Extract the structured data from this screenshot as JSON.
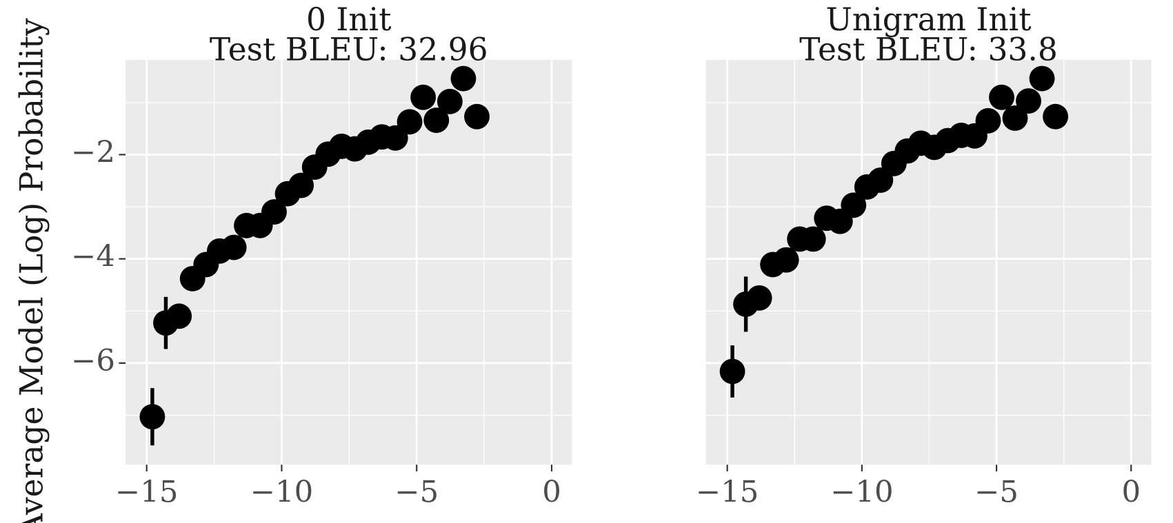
{
  "chart_data": [
    {
      "type": "scatter",
      "title": "0 Init",
      "subtitle": "Test BLEU: 32.96",
      "ylabel": "Average Model (Log) Probability",
      "color": "#000000",
      "grid": true,
      "x": [
        -14.79,
        -14.29,
        -13.8,
        -13.3,
        -12.8,
        -12.3,
        -11.77,
        -11.3,
        -10.8,
        -10.28,
        -9.78,
        -9.28,
        -8.78,
        -8.28,
        -7.78,
        -7.29,
        -6.79,
        -6.29,
        -5.79,
        -5.26,
        -4.76,
        -4.27,
        -3.77,
        -3.27,
        -2.77
      ],
      "values": [
        -7.03,
        -5.23,
        -5.1,
        -4.38,
        -4.11,
        -3.85,
        -3.78,
        -3.36,
        -3.36,
        -3.1,
        -2.75,
        -2.59,
        -2.24,
        -1.99,
        -1.84,
        -1.89,
        -1.76,
        -1.66,
        -1.68,
        -1.37,
        -0.9,
        -1.34,
        -0.98,
        -0.54,
        -1.27
      ],
      "errors": [
        0.55,
        0.5,
        null,
        null,
        null,
        null,
        null,
        null,
        null,
        null,
        null,
        null,
        null,
        null,
        null,
        null,
        null,
        null,
        null,
        null,
        null,
        null,
        null,
        null,
        null
      ],
      "xlim": [
        -15.78,
        0.75
      ],
      "ylim": [
        -7.95,
        -0.18
      ],
      "xticks": [
        {
          "value": -15,
          "label": "−15"
        },
        {
          "value": -10,
          "label": "−10"
        },
        {
          "value": -5,
          "label": "−5"
        },
        0
      ],
      "yticks": [
        {
          "value": -6,
          "label": "−6"
        },
        {
          "value": -4,
          "label": "−4"
        },
        {
          "value": -2,
          "label": "−2"
        }
      ],
      "minor_xticks": [
        -12.5,
        -7.5,
        -2.5
      ],
      "minor_yticks": [
        -7,
        -5,
        -3,
        -1
      ]
    },
    {
      "type": "scatter",
      "title": "Unigram Init",
      "subtitle": "Test BLEU: 33.8",
      "color": "#000000",
      "grid": true,
      "x": [
        -14.81,
        -14.31,
        -13.81,
        -13.31,
        -12.81,
        -12.31,
        -11.81,
        -11.31,
        -10.81,
        -10.31,
        -9.81,
        -9.31,
        -8.81,
        -8.31,
        -7.81,
        -7.31,
        -6.81,
        -6.31,
        -5.81,
        -5.31,
        -4.81,
        -4.31,
        -3.81,
        -3.31,
        -2.81
      ],
      "values": [
        -6.16,
        -4.87,
        -4.75,
        -4.11,
        -4.02,
        -3.62,
        -3.62,
        -3.22,
        -3.28,
        -2.97,
        -2.62,
        -2.49,
        -2.17,
        -1.93,
        -1.78,
        -1.86,
        -1.73,
        -1.63,
        -1.64,
        -1.35,
        -0.9,
        -1.3,
        -0.97,
        -0.54,
        -1.27
      ],
      "errors": [
        0.5,
        0.53,
        null,
        null,
        null,
        null,
        null,
        null,
        null,
        null,
        null,
        null,
        null,
        null,
        null,
        null,
        null,
        null,
        null,
        null,
        null,
        null,
        null,
        null,
        null
      ],
      "xlim": [
        -15.8,
        0.75
      ],
      "ylim": [
        -7.95,
        -0.18
      ],
      "xticks": [
        {
          "value": -15,
          "label": "−15"
        },
        {
          "value": -10,
          "label": "−10"
        },
        {
          "value": -5,
          "label": "−5"
        },
        0
      ],
      "yticks": [
        -6,
        -4,
        -2
      ],
      "minor_xticks": [
        -12.5,
        -7.5,
        -2.5
      ],
      "minor_yticks": [
        -7,
        -5,
        -3,
        -1
      ]
    }
  ]
}
